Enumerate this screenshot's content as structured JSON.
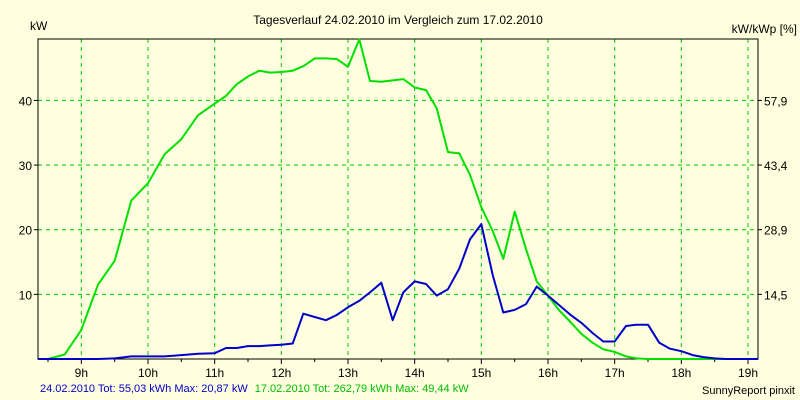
{
  "chart_data": {
    "type": "line",
    "title": "Tagesverlauf 24.02.2010 im Vergleich zum 17.02.2010",
    "ylabel_left": "kW",
    "ylabel_right": "kW/kWp [%]",
    "grid": true,
    "x_range_hours": [
      8.35,
      19.15
    ],
    "y_range_kw": [
      0,
      49.5
    ],
    "x_ticks": [
      {
        "h": 9,
        "label": "9h"
      },
      {
        "h": 10,
        "label": "10h"
      },
      {
        "h": 11,
        "label": "11h"
      },
      {
        "h": 12,
        "label": "12h"
      },
      {
        "h": 13,
        "label": "13h"
      },
      {
        "h": 14,
        "label": "14h"
      },
      {
        "h": 15,
        "label": "15h"
      },
      {
        "h": 16,
        "label": "16h"
      },
      {
        "h": 17,
        "label": "17h"
      },
      {
        "h": 18,
        "label": "18h"
      },
      {
        "h": 19,
        "label": "19h"
      }
    ],
    "y_ticks_left": [
      {
        "v": 10,
        "label": "10"
      },
      {
        "v": 20,
        "label": "20"
      },
      {
        "v": 30,
        "label": "30"
      },
      {
        "v": 40,
        "label": "40"
      }
    ],
    "y_ticks_right": [
      {
        "v": 10,
        "label": "14,5"
      },
      {
        "v": 20,
        "label": "28,9"
      },
      {
        "v": 30,
        "label": "43,4"
      },
      {
        "v": 40,
        "label": "57,9"
      }
    ],
    "series": [
      {
        "name": "24.02.2010",
        "color": "#0000c8",
        "x": [
          8.35,
          8.5,
          8.75,
          9.0,
          9.25,
          9.5,
          9.75,
          10.0,
          10.25,
          10.5,
          10.75,
          11.0,
          11.17,
          11.33,
          11.5,
          11.67,
          11.83,
          12.0,
          12.17,
          12.33,
          12.5,
          12.67,
          12.83,
          13.0,
          13.17,
          13.33,
          13.5,
          13.67,
          13.83,
          14.0,
          14.17,
          14.33,
          14.5,
          14.67,
          14.83,
          15.0,
          15.17,
          15.33,
          15.5,
          15.67,
          15.83,
          16.0,
          16.17,
          16.33,
          16.5,
          16.67,
          16.83,
          17.0,
          17.17,
          17.33,
          17.5,
          17.67,
          17.83,
          18.0,
          18.17,
          18.33,
          18.5,
          18.67,
          18.83,
          19.0,
          19.15
        ],
        "values": [
          0,
          0,
          0,
          0,
          0,
          0.1,
          0.4,
          0.4,
          0.4,
          0.6,
          0.8,
          0.9,
          1.7,
          1.7,
          2.0,
          2.0,
          2.1,
          2.2,
          2.4,
          7.0,
          6.5,
          6.0,
          6.8,
          8.0,
          9.0,
          10.3,
          11.8,
          6.0,
          10.3,
          12.0,
          11.6,
          9.8,
          10.8,
          14.0,
          18.5,
          20.87,
          13.0,
          7.2,
          7.6,
          8.5,
          11.2,
          9.8,
          8.3,
          6.9,
          5.6,
          4.0,
          2.7,
          2.7,
          5.1,
          5.3,
          5.3,
          2.5,
          1.6,
          1.2,
          0.6,
          0.3,
          0.1,
          0,
          0,
          0,
          0
        ]
      },
      {
        "name": "17.02.2010",
        "color": "#00e000",
        "x": [
          8.35,
          8.5,
          8.75,
          9.0,
          9.25,
          9.5,
          9.75,
          10.0,
          10.25,
          10.5,
          10.75,
          11.0,
          11.17,
          11.33,
          11.5,
          11.67,
          11.83,
          12.0,
          12.17,
          12.33,
          12.5,
          12.67,
          12.83,
          13.0,
          13.17,
          13.33,
          13.5,
          13.67,
          13.83,
          14.0,
          14.17,
          14.33,
          14.5,
          14.67,
          14.83,
          15.0,
          15.17,
          15.33,
          15.5,
          15.67,
          15.83,
          16.0,
          16.17,
          16.33,
          16.5,
          16.67,
          16.83,
          17.0,
          17.17,
          17.33,
          17.5,
          17.67,
          17.83,
          18.0,
          18.17,
          18.33,
          18.5,
          18.67,
          18.83,
          19.0,
          19.15
        ],
        "values": [
          0,
          0,
          0.7,
          4.5,
          11.5,
          15.2,
          24.5,
          27.2,
          31.7,
          34.0,
          37.7,
          39.5,
          40.7,
          42.5,
          43.7,
          44.6,
          44.3,
          44.4,
          44.6,
          45.3,
          46.5,
          46.5,
          46.4,
          45.2,
          49.44,
          43.0,
          42.9,
          43.1,
          43.3,
          42.0,
          41.6,
          38.8,
          32.0,
          31.8,
          28.5,
          23.5,
          19.8,
          15.5,
          22.8,
          17.0,
          12.0,
          9.8,
          7.5,
          5.8,
          3.9,
          2.5,
          1.5,
          1.1,
          0.4,
          0.1,
          0,
          0,
          0,
          0,
          0,
          0,
          0,
          0,
          0,
          0,
          0
        ]
      }
    ]
  },
  "footer": {
    "s1_text": "24.02.2010 Tot: 55,03 kWh Max: 20,87 kW",
    "s2_text": "17.02.2010 Tot: 262,79 kWh Max: 49,44 kW",
    "credit": "SunnyReport pinxit"
  }
}
